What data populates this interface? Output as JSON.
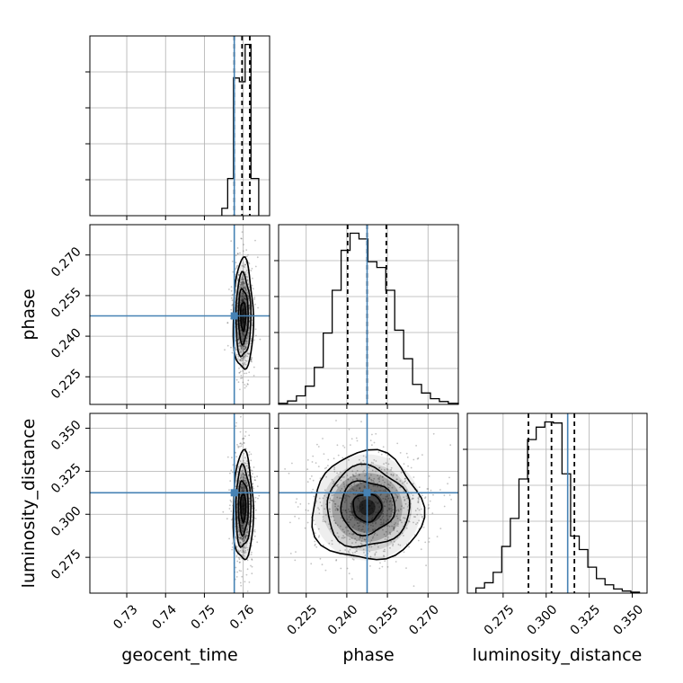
{
  "chart_data": {
    "type": "corner",
    "parameters": [
      "geocent_time",
      "phase",
      "luminosity_distance"
    ],
    "xlabels": [
      "geocent_time",
      "phase",
      "luminosity_distance"
    ],
    "ylabels": [
      "",
      "phase",
      "luminosity_distance"
    ],
    "injection": {
      "geocent_time": 0.7577,
      "phase": 0.2475,
      "luminosity_distance": 0.3125
    },
    "colors": {
      "injection": "#4682b4",
      "hist": "#000000",
      "grid": "#b0b0b0",
      "points": "#555555",
      "fill": "#000000"
    },
    "grid": true,
    "ranges": {
      "geocent_time": [
        0.7205,
        0.7668
      ],
      "phase": [
        0.2148,
        0.2812
      ],
      "luminosity_distance": [
        0.2542,
        0.3586
      ]
    },
    "ticks": {
      "geocent_time": [
        "0.73",
        "0.74",
        "0.75",
        "0.76"
      ],
      "phase": [
        "0.225",
        "0.240",
        "0.255",
        "0.270"
      ],
      "luminosity_distance": [
        "0.275",
        "0.300",
        "0.325",
        "0.350"
      ]
    },
    "histograms": {
      "geocent_time": {
        "bins": [
          0.7545,
          0.756,
          0.7575,
          0.759,
          0.7605,
          0.762,
          0.764
        ],
        "counts": [
          2,
          10,
          37,
          36,
          46,
          10
        ],
        "quantiles": [
          0.7577,
          0.7597,
          0.7617
        ]
      },
      "phase": {
        "bins": [
          0.2148,
          0.2181,
          0.2214,
          0.2247,
          0.228,
          0.2313,
          0.2346,
          0.2379,
          0.2412,
          0.2445,
          0.2478,
          0.2511,
          0.2544,
          0.2577,
          0.261,
          0.2643,
          0.2676,
          0.2709,
          0.2742,
          0.2775,
          0.2812
        ],
        "counts": [
          0.2,
          0.6,
          1.5,
          3.2,
          6.5,
          12.5,
          20,
          27,
          30,
          29,
          25,
          24,
          20,
          13,
          8,
          3.5,
          2,
          1,
          0.5,
          0.2
        ],
        "quantiles": [
          0.2403,
          0.2475,
          0.2546
        ]
      },
      "luminosity_distance": {
        "bins": [
          0.2592,
          0.2642,
          0.2692,
          0.2742,
          0.2792,
          0.2842,
          0.2892,
          0.2942,
          0.2992,
          0.3042,
          0.3092,
          0.3142,
          0.3192,
          0.3242,
          0.3292,
          0.3342,
          0.3392,
          0.3442,
          0.3492,
          0.3542
        ],
        "counts": [
          0.5,
          1,
          2,
          4.5,
          7.2,
          11,
          14.8,
          16,
          16.5,
          16.4,
          11.5,
          5.5,
          4.2,
          2.5,
          1.4,
          0.8,
          0.4,
          0.2,
          0.1
        ],
        "quantiles": [
          0.2897,
          0.3031,
          0.3164
        ]
      }
    },
    "joint": {
      "phase|geocent_time": {
        "center": [
          0.76,
          0.2475
        ],
        "spread": [
          0.0011,
          0.0087
        ],
        "n_points": 700
      },
      "luminosity_distance|geocent_time": {
        "center": [
          0.76,
          0.304
        ],
        "spread": [
          0.0011,
          0.0134
        ],
        "n_points": 700
      },
      "luminosity_distance|phase": {
        "center": [
          0.2475,
          0.304
        ],
        "spread": [
          0.0087,
          0.0134
        ],
        "n_points": 900
      }
    }
  }
}
